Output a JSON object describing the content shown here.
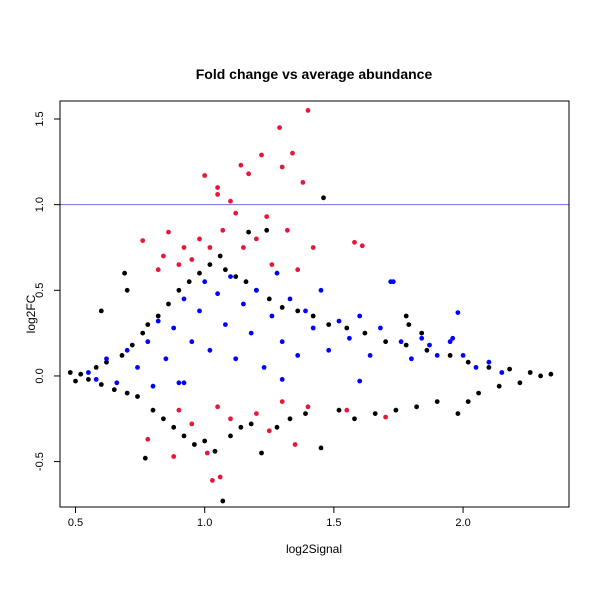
{
  "chart_data": {
    "type": "scatter",
    "title": "Fold change vs average abundance",
    "xlabel": "log2Signal",
    "ylabel": "log2FC",
    "xlim": [
      0.44,
      2.41
    ],
    "ylim": [
      -0.765,
      1.605
    ],
    "x_ticks": [
      0.5,
      1.0,
      1.5,
      2.0
    ],
    "x_tick_labels": [
      "0.5",
      "1.0",
      "1.5",
      "2.0"
    ],
    "y_ticks": [
      -0.5,
      0.0,
      0.5,
      1.0,
      1.5
    ],
    "y_tick_labels": [
      "-0.5",
      "0.0",
      "0.5",
      "1.0",
      "1.5"
    ],
    "grid": false,
    "legend": "none",
    "reference_line": {
      "axis": "y",
      "value": 1.0,
      "color": "#6f6ff3"
    },
    "series": [
      {
        "color": "#000000",
        "description": "dense cloud (background)",
        "points": [
          [
            0.48,
            0.02
          ],
          [
            0.5,
            -0.03
          ],
          [
            0.52,
            0.01
          ],
          [
            0.55,
            -0.02
          ],
          [
            0.58,
            0.05
          ],
          [
            0.6,
            -0.05
          ],
          [
            0.62,
            0.08
          ],
          [
            0.65,
            -0.08
          ],
          [
            0.68,
            0.12
          ],
          [
            0.7,
            -0.1
          ],
          [
            0.72,
            0.18
          ],
          [
            0.74,
            -0.12
          ],
          [
            0.76,
            0.25
          ],
          [
            0.77,
            -0.48
          ],
          [
            0.78,
            0.3
          ],
          [
            0.8,
            -0.2
          ],
          [
            0.82,
            0.35
          ],
          [
            0.84,
            -0.25
          ],
          [
            0.86,
            0.42
          ],
          [
            0.88,
            -0.3
          ],
          [
            0.9,
            0.5
          ],
          [
            0.92,
            -0.35
          ],
          [
            0.94,
            0.55
          ],
          [
            0.96,
            -0.4
          ],
          [
            0.98,
            0.6
          ],
          [
            1.0,
            -0.38
          ],
          [
            1.02,
            0.65
          ],
          [
            1.04,
            -0.44
          ],
          [
            1.06,
            0.7
          ],
          [
            1.07,
            -0.73
          ],
          [
            1.08,
            0.62
          ],
          [
            1.1,
            -0.35
          ],
          [
            1.12,
            0.58
          ],
          [
            1.14,
            -0.3
          ],
          [
            1.16,
            0.55
          ],
          [
            1.18,
            -0.28
          ],
          [
            1.2,
            0.5
          ],
          [
            1.22,
            -0.45
          ],
          [
            1.25,
            0.45
          ],
          [
            1.28,
            -0.3
          ],
          [
            1.3,
            0.4
          ],
          [
            1.33,
            -0.25
          ],
          [
            1.36,
            0.38
          ],
          [
            1.39,
            -0.22
          ],
          [
            1.42,
            0.35
          ],
          [
            1.45,
            -0.42
          ],
          [
            1.46,
            1.04
          ],
          [
            1.48,
            0.3
          ],
          [
            1.52,
            -0.2
          ],
          [
            1.55,
            0.28
          ],
          [
            1.58,
            -0.25
          ],
          [
            1.62,
            0.25
          ],
          [
            1.66,
            -0.22
          ],
          [
            1.7,
            0.2
          ],
          [
            1.74,
            -0.2
          ],
          [
            1.78,
            0.18
          ],
          [
            1.82,
            -0.18
          ],
          [
            1.86,
            0.15
          ],
          [
            1.9,
            -0.15
          ],
          [
            1.95,
            0.12
          ],
          [
            1.98,
            -0.22
          ],
          [
            2.02,
            0.08
          ],
          [
            2.06,
            -0.1
          ],
          [
            2.1,
            0.05
          ],
          [
            2.14,
            -0.06
          ],
          [
            2.18,
            0.04
          ],
          [
            2.22,
            -0.04
          ],
          [
            2.26,
            0.02
          ],
          [
            2.3,
            0.0
          ],
          [
            2.34,
            0.01
          ],
          [
            0.69,
            0.6
          ],
          [
            0.6,
            0.38
          ],
          [
            0.7,
            0.5
          ],
          [
            1.24,
            0.85
          ],
          [
            1.17,
            0.84
          ],
          [
            1.79,
            0.3
          ],
          [
            1.84,
            0.25
          ],
          [
            1.78,
            0.35
          ],
          [
            2.02,
            -0.15
          ]
        ]
      },
      {
        "color": "#0000ff",
        "description": "blue points",
        "points": [
          [
            0.55,
            0.02
          ],
          [
            0.58,
            -0.02
          ],
          [
            0.62,
            0.1
          ],
          [
            0.66,
            -0.04
          ],
          [
            0.7,
            0.15
          ],
          [
            0.74,
            0.05
          ],
          [
            0.78,
            0.2
          ],
          [
            0.8,
            -0.06
          ],
          [
            0.82,
            0.32
          ],
          [
            0.85,
            0.1
          ],
          [
            0.88,
            0.28
          ],
          [
            0.9,
            -0.04
          ],
          [
            0.92,
            0.45
          ],
          [
            0.95,
            0.2
          ],
          [
            0.98,
            0.38
          ],
          [
            1.0,
            0.55
          ],
          [
            1.02,
            0.15
          ],
          [
            1.05,
            0.48
          ],
          [
            1.08,
            0.3
          ],
          [
            1.1,
            0.58
          ],
          [
            1.12,
            0.1
          ],
          [
            1.15,
            0.42
          ],
          [
            1.18,
            0.25
          ],
          [
            1.2,
            0.5
          ],
          [
            1.23,
            0.05
          ],
          [
            1.26,
            0.35
          ],
          [
            1.28,
            0.6
          ],
          [
            1.3,
            0.2
          ],
          [
            1.33,
            0.45
          ],
          [
            1.36,
            0.12
          ],
          [
            1.39,
            0.38
          ],
          [
            1.42,
            0.28
          ],
          [
            1.45,
            0.5
          ],
          [
            1.48,
            0.15
          ],
          [
            1.52,
            0.32
          ],
          [
            1.56,
            0.22
          ],
          [
            1.6,
            0.35
          ],
          [
            1.64,
            0.12
          ],
          [
            1.68,
            0.28
          ],
          [
            1.72,
            0.55
          ],
          [
            1.73,
            0.55
          ],
          [
            1.76,
            0.2
          ],
          [
            1.8,
            0.1
          ],
          [
            1.84,
            0.22
          ],
          [
            1.87,
            0.18
          ],
          [
            1.9,
            0.12
          ],
          [
            1.95,
            0.2
          ],
          [
            1.96,
            0.22
          ],
          [
            1.98,
            0.37
          ],
          [
            2.0,
            0.12
          ],
          [
            2.05,
            0.05
          ],
          [
            2.1,
            0.08
          ],
          [
            0.92,
            -0.04
          ],
          [
            1.3,
            -0.02
          ],
          [
            1.6,
            -0.03
          ],
          [
            2.15,
            0.02
          ]
        ]
      },
      {
        "color": "#e8173a",
        "description": "red points",
        "points": [
          [
            0.76,
            0.79
          ],
          [
            0.78,
            -0.37
          ],
          [
            0.82,
            0.62
          ],
          [
            0.84,
            0.7
          ],
          [
            0.86,
            0.84
          ],
          [
            0.88,
            -0.47
          ],
          [
            0.9,
            0.65
          ],
          [
            0.92,
            0.75
          ],
          [
            0.95,
            0.68
          ],
          [
            0.98,
            0.8
          ],
          [
            1.0,
            1.17
          ],
          [
            1.01,
            -0.45
          ],
          [
            1.02,
            0.75
          ],
          [
            1.03,
            -0.61
          ],
          [
            1.05,
            1.1
          ],
          [
            1.06,
            -0.59
          ],
          [
            1.05,
            1.06
          ],
          [
            1.07,
            0.85
          ],
          [
            1.1,
            1.02
          ],
          [
            1.12,
            0.95
          ],
          [
            1.14,
            1.23
          ],
          [
            1.15,
            0.75
          ],
          [
            1.17,
            1.18
          ],
          [
            1.2,
            0.8
          ],
          [
            1.22,
            1.29
          ],
          [
            1.24,
            0.93
          ],
          [
            1.26,
            0.65
          ],
          [
            1.29,
            1.45
          ],
          [
            1.3,
            1.22
          ],
          [
            1.32,
            0.85
          ],
          [
            1.34,
            1.3
          ],
          [
            1.36,
            0.62
          ],
          [
            1.38,
            1.13
          ],
          [
            1.4,
            1.55
          ],
          [
            1.42,
            0.75
          ],
          [
            1.58,
            0.78
          ],
          [
            1.61,
            0.76
          ],
          [
            1.35,
            -0.4
          ],
          [
            1.25,
            -0.32
          ],
          [
            1.1,
            -0.25
          ],
          [
            0.95,
            -0.28
          ],
          [
            1.2,
            -0.22
          ],
          [
            1.4,
            -0.18
          ],
          [
            1.55,
            -0.2
          ],
          [
            1.7,
            -0.24
          ],
          [
            0.9,
            -0.2
          ],
          [
            1.05,
            -0.18
          ],
          [
            1.3,
            -0.15
          ]
        ]
      }
    ]
  }
}
